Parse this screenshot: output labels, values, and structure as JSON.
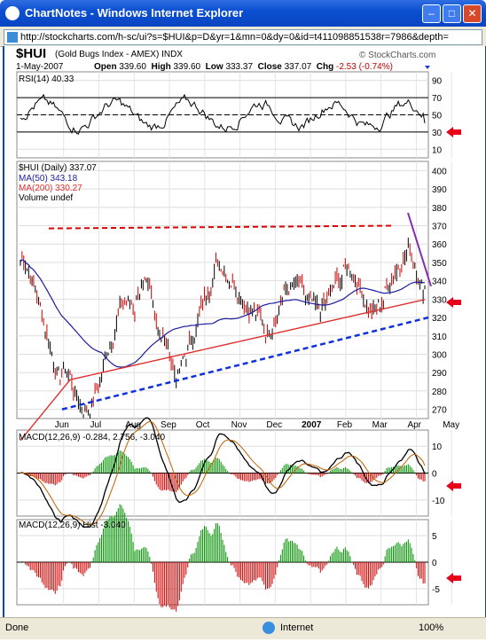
{
  "window": {
    "title": "ChartNotes - Windows Internet Explorer",
    "minimize": "–",
    "maximize": "□",
    "close": "✕"
  },
  "address_bar": {
    "url": "http://stockcharts.com/h-sc/ui?s=$HUI&p=D&yr=1&mn=0&dy=0&id=t411098851538r=7986&depth="
  },
  "chart_header": {
    "symbol": "$HUI",
    "name": "(Gold Bugs Index - AMEX)",
    "exchange": "INDX",
    "watermark": "© StockCharts.com",
    "date": "1-May-2007",
    "open_label": "Open",
    "open": "339.60",
    "high_label": "High",
    "high": "339.60",
    "low_label": "Low",
    "low": "333.37",
    "close_label": "Close",
    "close": "337.07",
    "chg_label": "Chg",
    "chg": "-2.53 (-0.74%)"
  },
  "panels": {
    "rsi_label": "RSI(14) 40.33",
    "price_label": "$HUI (Daily) 337.07",
    "ma50_label": "MA(50) 343.18",
    "ma200_label": "MA(200) 330.27",
    "volume_label": "Volume undef",
    "macd_label": "MACD(12,26,9) -0.284, 2.756, -3.040",
    "hist_label": "MACD(12,26,9) Hist -3.040"
  },
  "colors": {
    "up": "#009000",
    "down": "#d00000",
    "ma50": "#1c1ca0",
    "ma200": "#e03030",
    "support": "#1030e0",
    "resistance": "#e00000",
    "purple": "#8030b0",
    "arrow": "#e8001a"
  },
  "chart_data": [
    {
      "type": "line",
      "name": "RSI(14)",
      "yticks": [
        10,
        30,
        50,
        70,
        90
      ],
      "ylim": [
        0,
        100
      ],
      "last": 40.33
    },
    {
      "type": "line",
      "name": "$HUI Daily",
      "yticks": [
        270,
        280,
        290,
        300,
        310,
        320,
        330,
        340,
        350,
        360,
        370,
        380,
        390,
        400
      ],
      "ylim": [
        265,
        405
      ],
      "x": [
        "Jun",
        "Jul",
        "Aug",
        "Sep",
        "Oct",
        "Nov",
        "Dec",
        "2007",
        "Feb",
        "Mar",
        "Apr",
        "May"
      ],
      "series": [
        {
          "name": "MA(50)",
          "last": 343.18
        },
        {
          "name": "MA(200)",
          "last": 330.27
        }
      ],
      "resistance": 370,
      "support_start": 270,
      "support_end": 320
    },
    {
      "type": "line",
      "name": "MACD(12,26,9)",
      "yticks": [
        -10,
        0,
        10
      ],
      "values": [
        -0.284,
        2.756,
        -3.04
      ]
    },
    {
      "type": "bar",
      "name": "MACD Hist",
      "yticks": [
        -5,
        0,
        5
      ],
      "last": -3.04
    }
  ],
  "status": {
    "left": "Done",
    "zone": "Internet",
    "zoom": "100%"
  }
}
